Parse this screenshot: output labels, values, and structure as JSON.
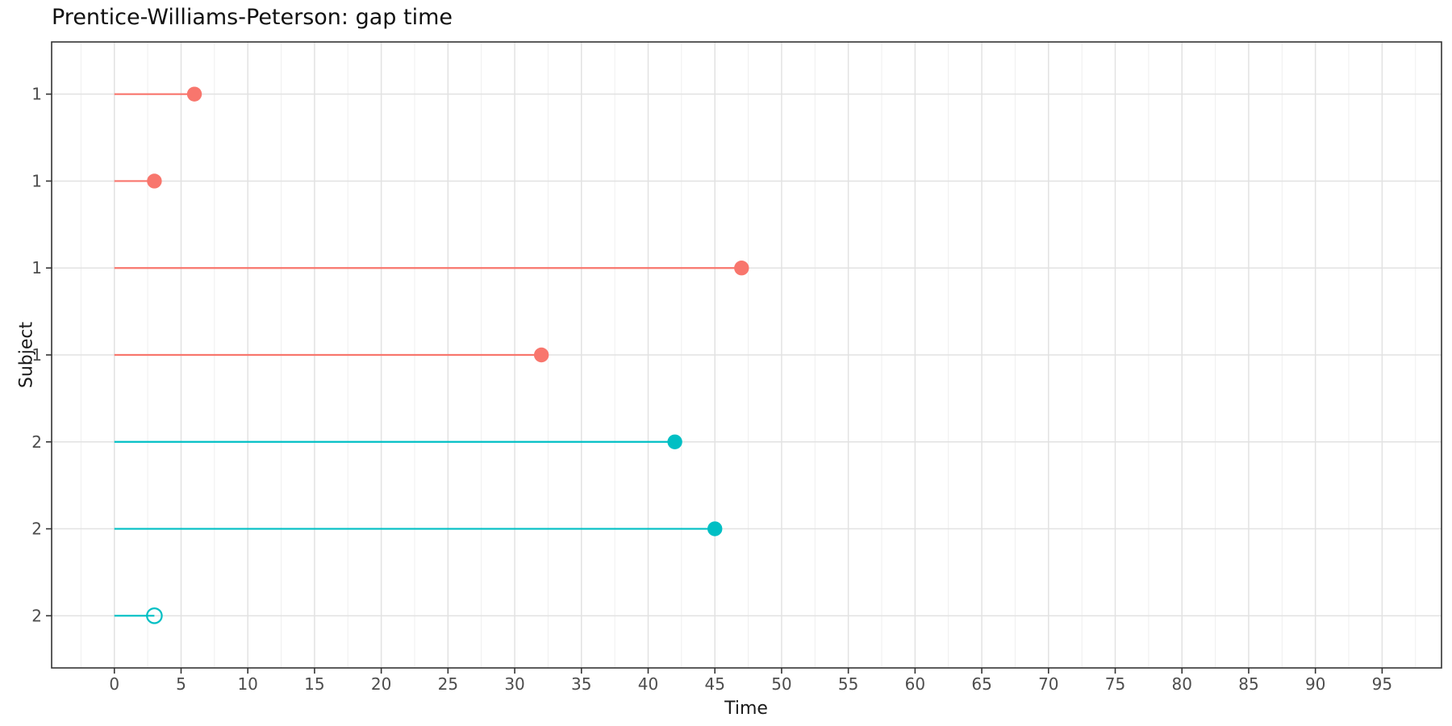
{
  "chart_data": {
    "type": "scatter",
    "subtype": "recurrent-event-gap-time-segments",
    "title": "Prentice-Williams-Peterson: gap time",
    "xlabel": "Time",
    "ylabel": "Subject",
    "xlim": [
      -4.7,
      99.45
    ],
    "x_ticks": [
      0,
      5,
      10,
      15,
      20,
      25,
      30,
      35,
      40,
      45,
      50,
      55,
      60,
      65,
      70,
      75,
      80,
      85,
      90,
      95
    ],
    "x_minor_step": 2.5,
    "grid": {
      "major_color": "#e2e2e2",
      "minor_color": "#efefef",
      "horizontal_minor": false
    },
    "legend": "none",
    "panel_border_color": "#333333",
    "tick_color": "#333333",
    "tick_label_color": "#4d4d4d",
    "event_marker": "filled-circle",
    "censor_marker": "open-circle",
    "colors": {
      "subject_1": "#F8766D",
      "subject_2": "#00BFC4"
    },
    "rows": [
      {
        "subject": "1",
        "start": 0,
        "end": 6,
        "event": true
      },
      {
        "subject": "1",
        "start": 0,
        "end": 3,
        "event": true
      },
      {
        "subject": "1",
        "start": 0,
        "end": 47,
        "event": true
      },
      {
        "subject": "1",
        "start": 0,
        "end": 32,
        "event": true
      },
      {
        "subject": "2",
        "start": 0,
        "end": 42,
        "event": true
      },
      {
        "subject": "2",
        "start": 0,
        "end": 45,
        "event": true
      },
      {
        "subject": "2",
        "start": 0,
        "end": 3,
        "event": false
      }
    ]
  }
}
